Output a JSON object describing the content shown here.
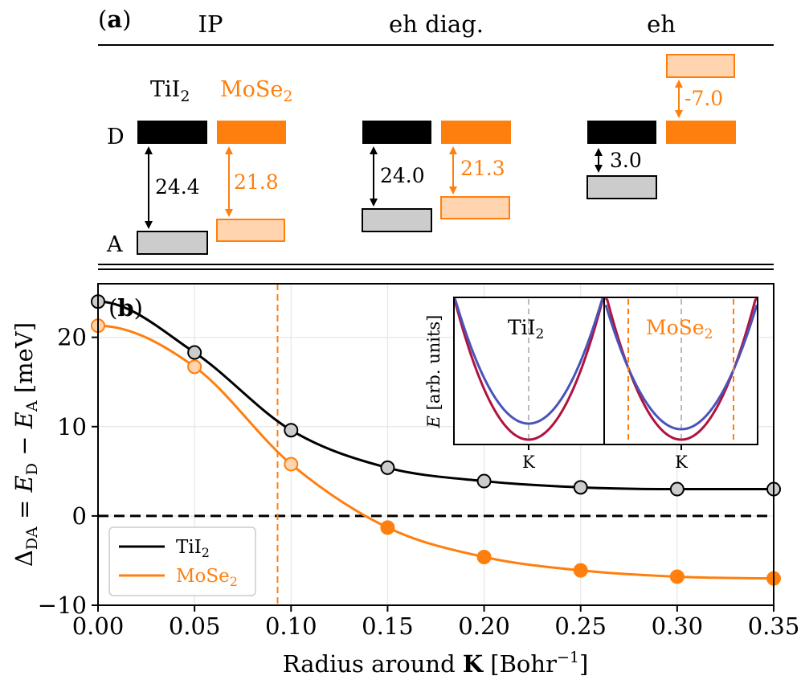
{
  "colors": {
    "tii2": "#000000",
    "mose2": "#ff7f0e",
    "acceptor_fill": "#cccccc",
    "mose2_light": "#ffd4ae",
    "grid": "#e6e6e6",
    "inset_blue": "#4a54b8",
    "inset_red": "#b0133e"
  },
  "panel_a": {
    "label": "(a)",
    "columns": [
      "IP",
      "eh diag.",
      "eh"
    ],
    "material_labels": [
      "TiI2",
      "MoSe2"
    ],
    "level_labels": [
      "D",
      "A"
    ],
    "gaps": [
      {
        "column": "IP",
        "tii2": "24.4",
        "mose2": "21.8"
      },
      {
        "column": "eh diag.",
        "tii2": "24.0",
        "mose2": "21.3"
      },
      {
        "column": "eh",
        "tii2": "3.0",
        "mose2": "-7.0"
      }
    ]
  },
  "chart_data": {
    "type": "line",
    "panel_label": "(b)",
    "xlabel": "Radius around K [Bohr^-1]",
    "ylabel": "Δ_DA = E_D − E_A [meV]",
    "xlim": [
      0.0,
      0.35
    ],
    "ylim": [
      -10,
      26
    ],
    "xticks": [
      "0.00",
      "0.05",
      "0.10",
      "0.15",
      "0.20",
      "0.25",
      "0.30",
      "0.35"
    ],
    "yticks": [
      "−10",
      "0",
      "10",
      "20"
    ],
    "vline_x": 0.093,
    "hline_y": 0,
    "grid": true,
    "legend_position": "bottom-left",
    "series": [
      {
        "name": "TiI2",
        "x": [
          0.0,
          0.05,
          0.1,
          0.15,
          0.2,
          0.25,
          0.3,
          0.35
        ],
        "y": [
          24.0,
          18.3,
          9.6,
          5.4,
          3.9,
          3.2,
          3.0,
          3.0
        ]
      },
      {
        "name": "MoSe2",
        "x": [
          0.0,
          0.05,
          0.1,
          0.15,
          0.2,
          0.25,
          0.3,
          0.35
        ],
        "y": [
          21.3,
          16.7,
          5.8,
          -1.3,
          -4.6,
          -6.1,
          -6.8,
          -7.0
        ]
      }
    ],
    "inset": {
      "ylabel": "E [arb. units]",
      "left_title": "TiI2",
      "right_title": "MoSe2",
      "tick_label": "K"
    }
  }
}
